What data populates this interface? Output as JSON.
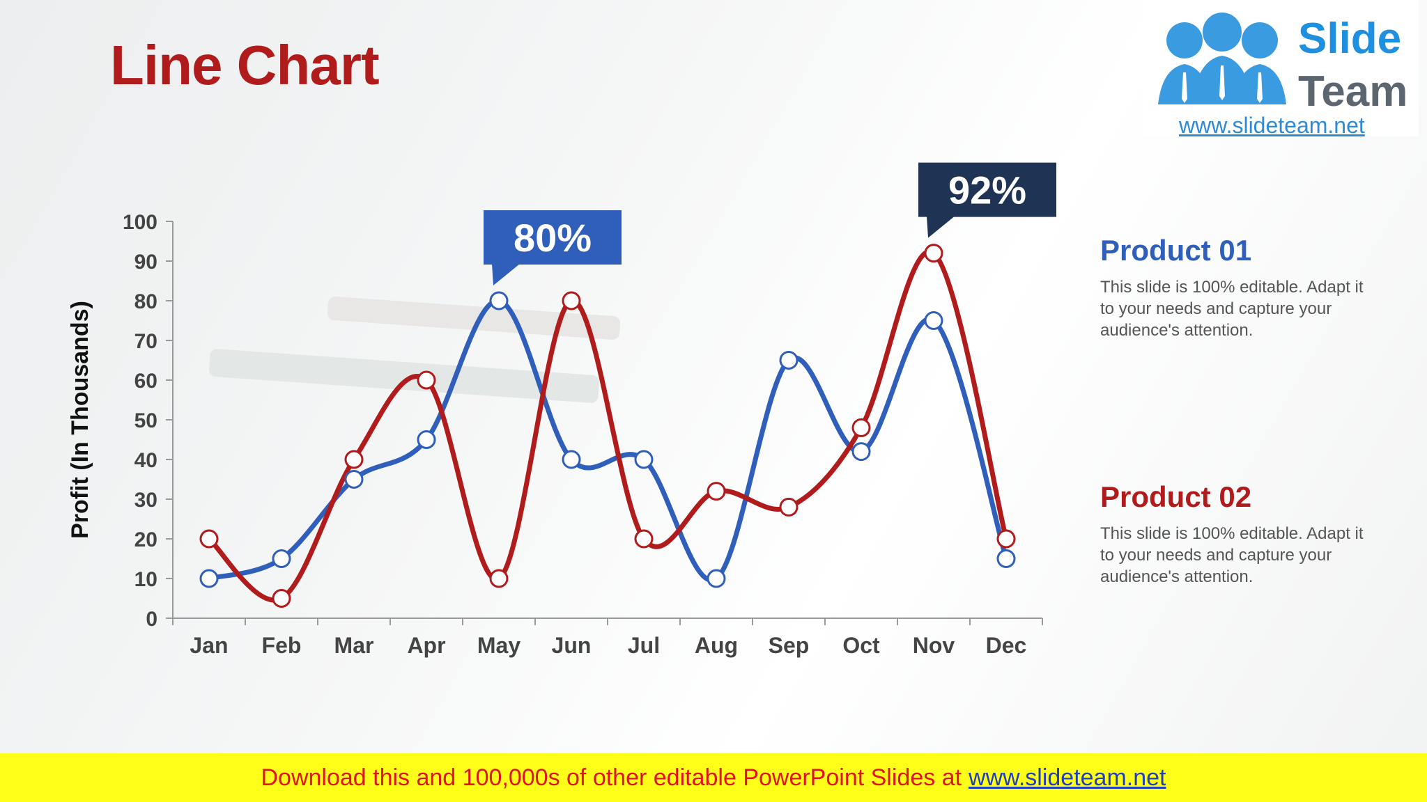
{
  "slide": {
    "title": "Line Chart",
    "logo": {
      "word1": "Slide",
      "word2": "Team",
      "url": "www.slideteam.net"
    },
    "legend": [
      {
        "name": "Product 01",
        "color": "#2f5fba",
        "description": "This slide is 100% editable. Adapt it to your needs and capture your audience's attention."
      },
      {
        "name": "Product 02",
        "color": "#b01c1c",
        "description": "This slide is 100% editable. Adapt it to your needs and capture your audience's attention."
      }
    ],
    "footer": {
      "text": "Download this and 100,000s of other editable PowerPoint Slides at",
      "link": "www.slideteam.net"
    }
  },
  "chart_data": {
    "type": "line",
    "title": "",
    "ylabel": "Profit (In Thousands)",
    "xlabel": "",
    "categories": [
      "Jan",
      "Feb",
      "Mar",
      "Apr",
      "May",
      "Jun",
      "Jul",
      "Aug",
      "Sep",
      "Oct",
      "Nov",
      "Dec"
    ],
    "ylim": [
      0,
      100
    ],
    "yticks": [
      0,
      10,
      20,
      30,
      40,
      50,
      60,
      70,
      80,
      90,
      100
    ],
    "grid": false,
    "series": [
      {
        "name": "Product 01",
        "color": "#2f5fba",
        "values": [
          10,
          15,
          35,
          45,
          80,
          40,
          40,
          10,
          65,
          42,
          75,
          15
        ]
      },
      {
        "name": "Product 02",
        "color": "#b01c1c",
        "values": [
          20,
          5,
          40,
          60,
          10,
          80,
          20,
          32,
          28,
          48,
          92,
          20
        ]
      }
    ],
    "callouts": [
      {
        "label": "80%",
        "category": "May",
        "series": 0,
        "value": 80,
        "color": "#2f5fba"
      },
      {
        "label": "92%",
        "category": "Nov",
        "series": 1,
        "value": 92,
        "color": "#1f3454"
      }
    ]
  }
}
